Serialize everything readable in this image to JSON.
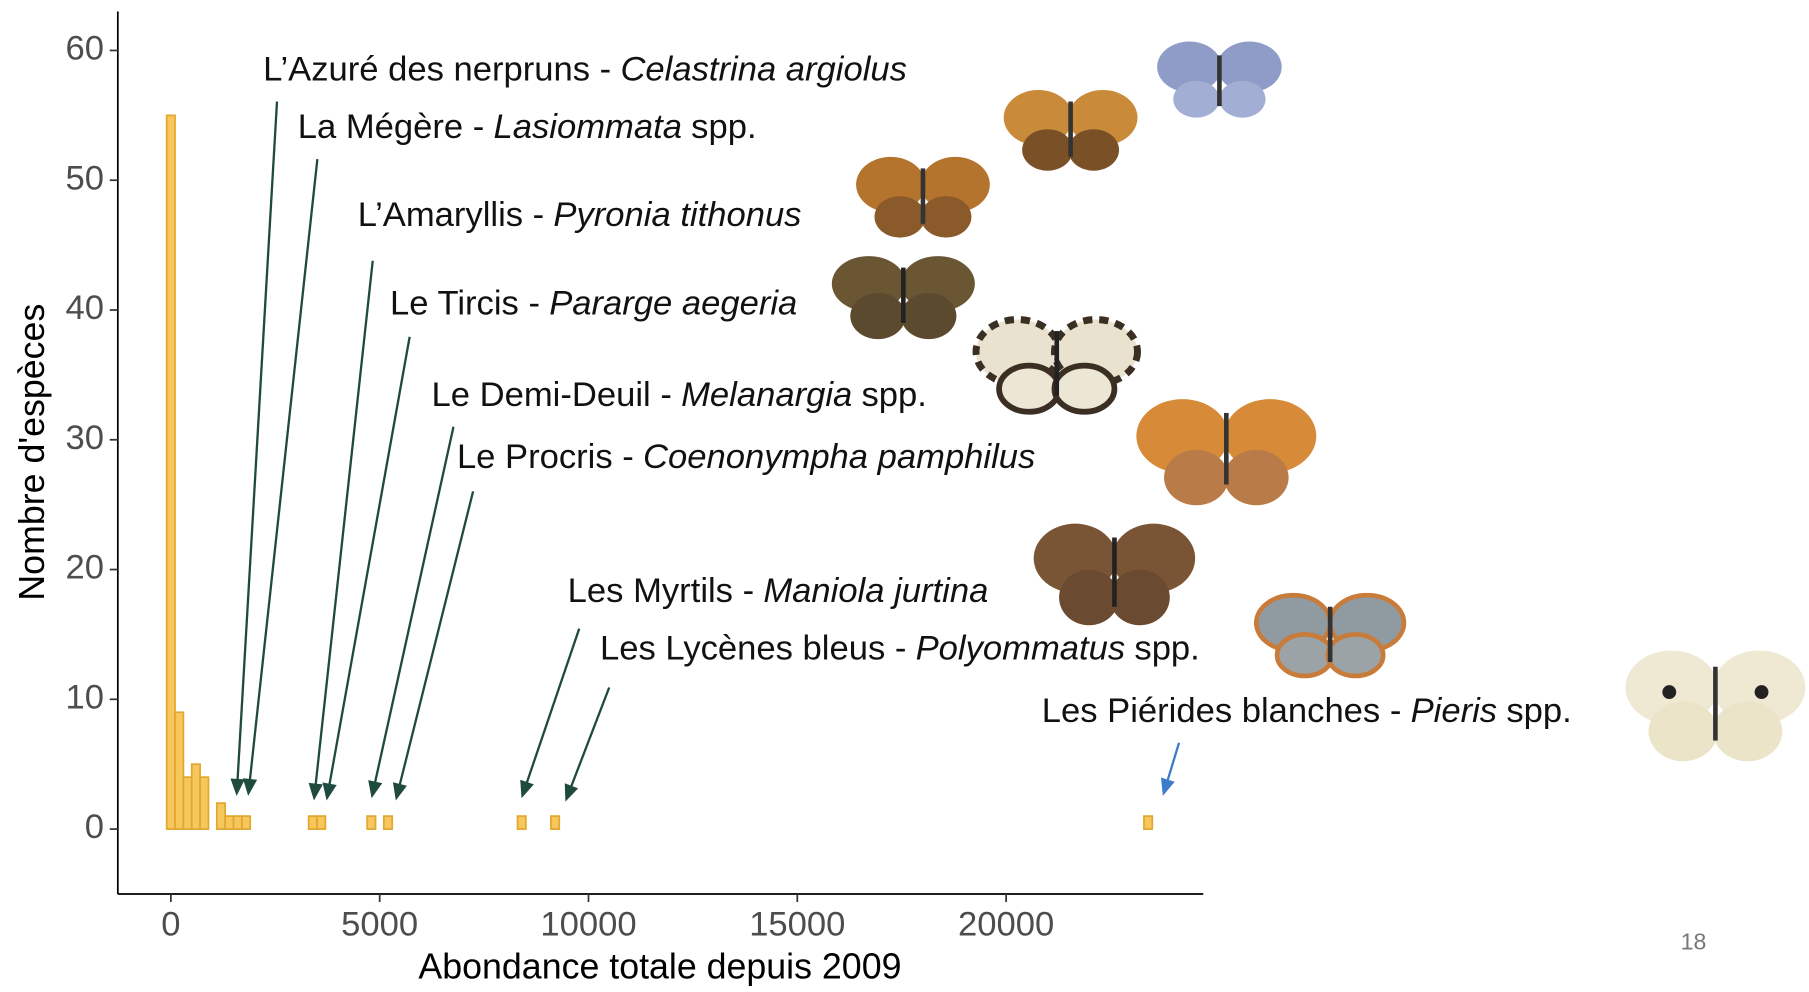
{
  "chart_data": {
    "type": "histogram",
    "x_label": "Abondance totale depuis 2009",
    "y_label": "Nombre d'espèces",
    "color": "#f6c75d",
    "edge_color": "#e3a72f",
    "bins": [
      -100,
      100,
      300,
      500,
      700,
      900,
      1100,
      1300,
      1500,
      1700,
      1900,
      2100,
      2300,
      2500,
      2700,
      2900,
      3100,
      3300,
      3500,
      3700,
      3900,
      4100,
      4300,
      4500,
      4700,
      4900,
      5100,
      5300,
      5500,
      5700,
      5900,
      6100,
      6300,
      6500,
      6700,
      6900,
      7100,
      7300,
      7500,
      7700,
      7900,
      8100,
      8300,
      8500,
      8700,
      8900,
      9100,
      9300,
      9500,
      9700,
      9900,
      10100,
      10300,
      10500,
      10700,
      10900,
      11100,
      11300,
      11500,
      11700,
      11900,
      12100,
      12300,
      12500,
      12700,
      12900,
      13100,
      13300,
      13500,
      13700,
      13900,
      14100,
      14300,
      14500,
      14700,
      14900,
      15100,
      15300,
      15500,
      15700,
      15900,
      16100,
      16300,
      16500,
      16700,
      16900,
      17100,
      17300,
      17500,
      17700,
      17900,
      18100,
      18300,
      18500,
      18700,
      18900,
      19100,
      19300,
      19500,
      19700,
      19900,
      20100,
      20300,
      20500,
      20700,
      20900,
      21100,
      21300,
      21500,
      21700,
      21900,
      22100,
      22300,
      22500,
      22700,
      22900,
      23100,
      23300,
      23500
    ],
    "counts": [
      55,
      9,
      4,
      5,
      4,
      0,
      2,
      1,
      1,
      1,
      0,
      0,
      0,
      0,
      0,
      0,
      0,
      1,
      1,
      0,
      0,
      0,
      0,
      0,
      1,
      0,
      1,
      0,
      0,
      0,
      0,
      0,
      0,
      0,
      0,
      0,
      0,
      0,
      0,
      0,
      0,
      0,
      1,
      0,
      0,
      0,
      1,
      0,
      0,
      0,
      0,
      0,
      0,
      0,
      0,
      0,
      0,
      0,
      0,
      0,
      0,
      0,
      0,
      0,
      0,
      0,
      0,
      0,
      0,
      0,
      0,
      0,
      0,
      0,
      0,
      0,
      0,
      0,
      0,
      0,
      0,
      0,
      0,
      0,
      0,
      0,
      0,
      0,
      0,
      0,
      0,
      0,
      0,
      0,
      0,
      0,
      0,
      0,
      0,
      0,
      0,
      0,
      0,
      0,
      0,
      0,
      0,
      0,
      0,
      0,
      0,
      0,
      0,
      0,
      0,
      0,
      0,
      1
    ],
    "xlim": [
      -1270,
      24720
    ],
    "ylim": [
      -5,
      63
    ],
    "xticks": [
      0,
      5000,
      10000,
      15000,
      20000
    ],
    "yticks": [
      0,
      10,
      20,
      30,
      40,
      50,
      60
    ],
    "annotations": [
      {
        "text": "L’Azuré des nerpruns -",
        "species": "Celastrina argiolus"
      },
      {
        "text": "La Mégère -",
        "species": "Lasiommata",
        "suffix": "spp."
      },
      {
        "text": "L’Amaryllis -",
        "species": "Pyronia tithonus"
      },
      {
        "text": "Le Tircis -",
        "species": "Pararge aegeria"
      },
      {
        "text": "Le Demi-Deuil -",
        "species": "Melanargia",
        "suffix": "spp."
      },
      {
        "text": "Le Procris -",
        "species": "Coenonympha pamphilus"
      },
      {
        "text": "Les Myrtils -",
        "species": "Maniola jurtina"
      },
      {
        "text": "Les Lycènes bleus -",
        "species": "Polyommatus",
        "suffix": "spp."
      },
      {
        "text": "Les Piérides blanches -",
        "species": "Pieris",
        "suffix": "spp."
      }
    ],
    "page_number": "18"
  }
}
